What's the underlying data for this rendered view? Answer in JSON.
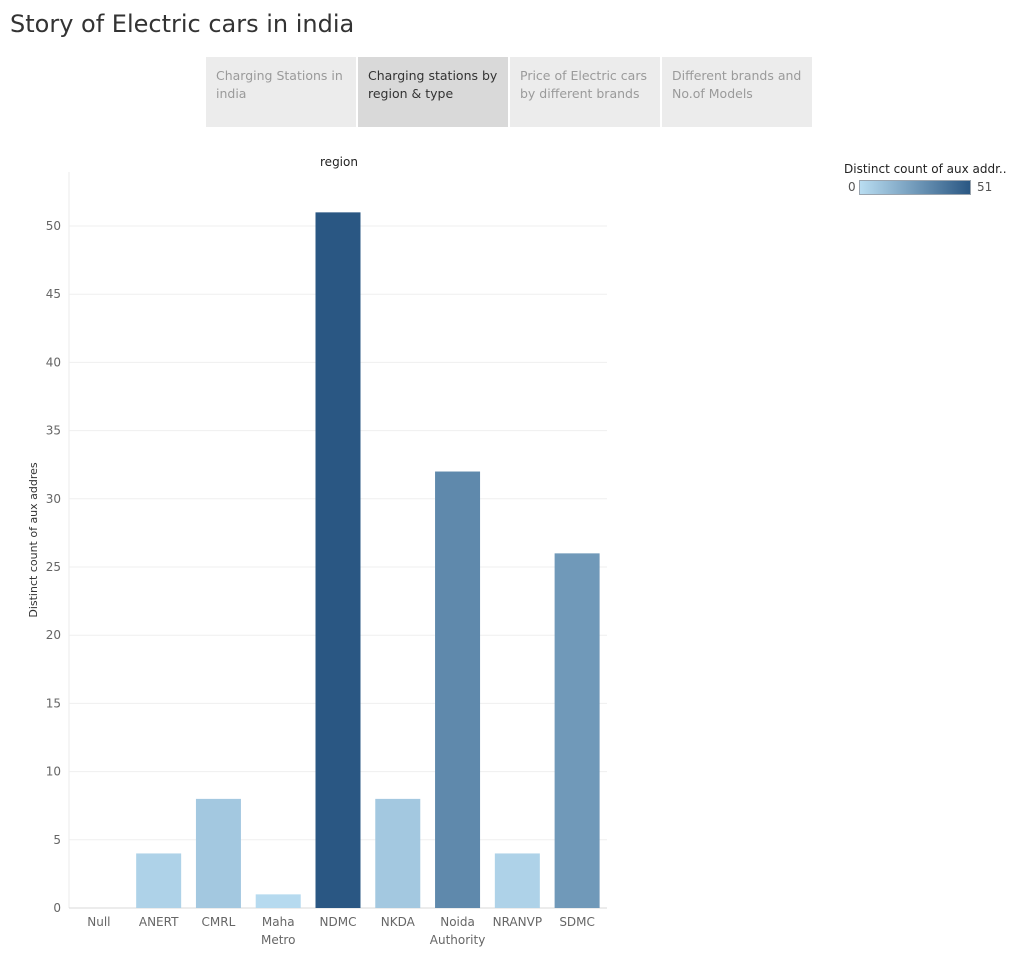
{
  "story": {
    "title": "Story of Electric cars in india",
    "tabs": [
      {
        "label": "Charging Stations in india",
        "active": false
      },
      {
        "label": "Charging stations by region & type",
        "active": true
      },
      {
        "label": "Price of Electric cars by different brands",
        "active": false
      },
      {
        "label": "Different brands and No.of Models",
        "active": false
      }
    ]
  },
  "legend": {
    "title": "Distinct count of aux addr..",
    "min_label": "0",
    "max_label": "51",
    "color_low": "#b9ddf1",
    "color_high": "#2a5783"
  },
  "chart_data": {
    "type": "bar",
    "header": "region",
    "ylabel": "Distinct count of aux addres",
    "xlabel": "",
    "ylim": [
      0,
      51
    ],
    "yticks": [
      0,
      5,
      10,
      15,
      20,
      25,
      30,
      35,
      40,
      45,
      50
    ],
    "grid": true,
    "legend_position": "top-right",
    "categories": [
      [
        "Null"
      ],
      [
        "ANERT"
      ],
      [
        "CMRL"
      ],
      [
        "Maha",
        "Metro"
      ],
      [
        "NDMC"
      ],
      [
        "NKDA"
      ],
      [
        "Noida",
        "Authority"
      ],
      [
        "NRANVP"
      ],
      [
        "SDMC"
      ]
    ],
    "values": [
      0,
      4,
      8,
      1,
      51,
      8,
      32,
      4,
      26
    ]
  }
}
